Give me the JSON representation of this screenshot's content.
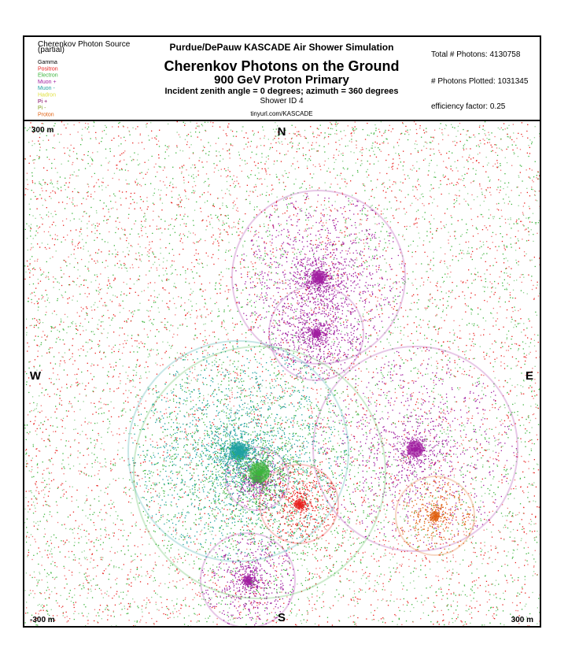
{
  "header": {
    "legend_title": "Cherenkov Photon Source",
    "legend_subtitle": "(partial)",
    "legend": [
      {
        "label": "Gamma",
        "color": "#000000"
      },
      {
        "label": "Positron",
        "color": "#e8201c"
      },
      {
        "label": "Electron",
        "color": "#3cb43c"
      },
      {
        "label": "Muon +",
        "color": "#a01ea0"
      },
      {
        "label": "Muon -",
        "color": "#1ea0a0"
      },
      {
        "label": "Hadron",
        "color": "#e0e040"
      },
      {
        "label": "Pi +",
        "color": "#800060"
      },
      {
        "label": "Pi -",
        "color": "#80a020"
      },
      {
        "label": "Proton",
        "color": "#e06010"
      }
    ],
    "site": "Purdue/DePauw KASCADE Air Shower Simulation",
    "title": "Cherenkov Photons on the Ground",
    "subtitle": "900 GeV Proton Primary",
    "angles": "Incident zenith angle =  0 degrees;  azimuth =  360 degrees",
    "shower_id": "Shower ID 4",
    "url": "tinyurl.com/KASCADE",
    "stats": [
      "Total # Photons: 4130758",
      "# Photons Plotted: 1031345",
      "efficiency factor: 0.25"
    ]
  },
  "plot": {
    "top_left": "300 m",
    "north": "N",
    "west": "W",
    "east": "E",
    "south": "S",
    "bottom_left": "-300 m",
    "bottom_right": "300 m"
  }
}
